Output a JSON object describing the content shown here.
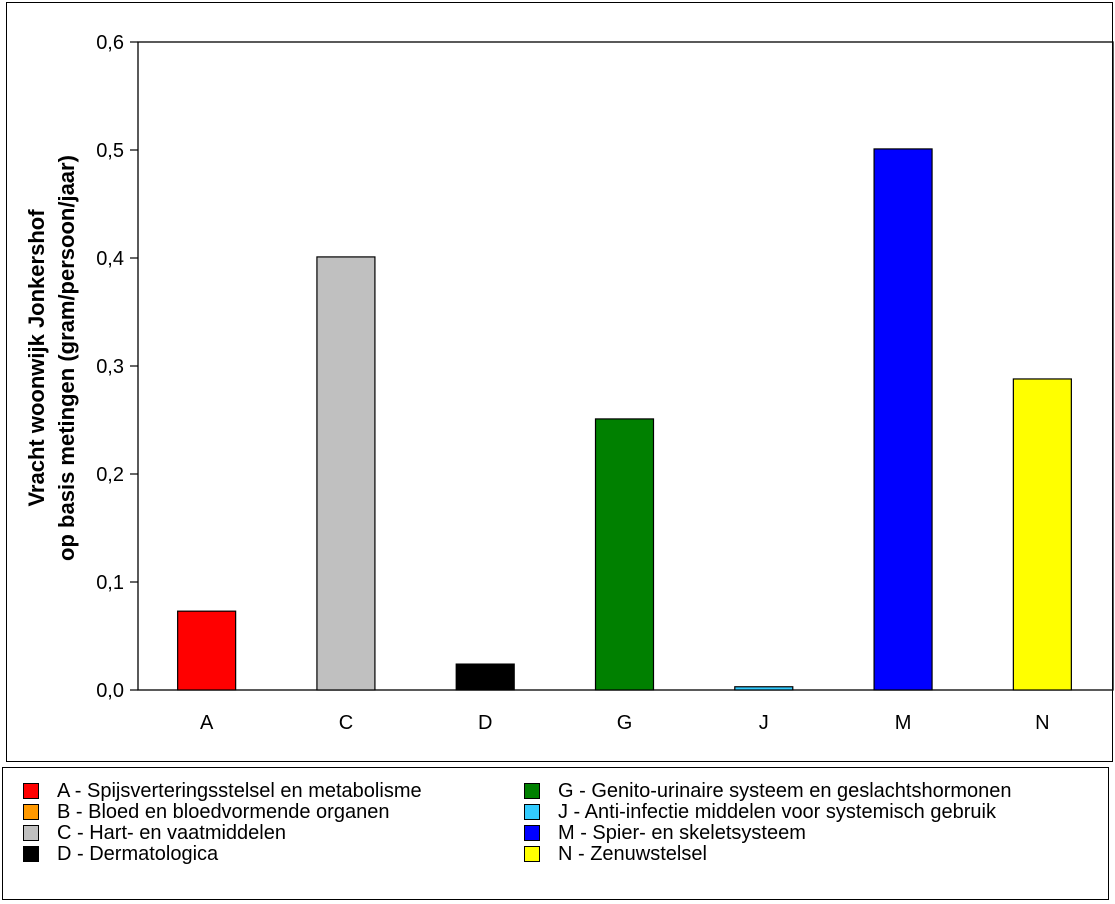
{
  "chart_data": {
    "type": "bar",
    "categories": [
      "A",
      "C",
      "D",
      "G",
      "J",
      "M",
      "N"
    ],
    "values": [
      0.073,
      0.401,
      0.024,
      0.251,
      0.003,
      0.501,
      0.288
    ],
    "colors": [
      "#ff0000",
      "#c0c0c0",
      "#000000",
      "#008000",
      "#33ccff",
      "#0000ff",
      "#ffff00"
    ],
    "ylabel_line1": "Vracht woonwijk Jonkershof",
    "ylabel_line2": "op basis metingen (gram/persoon/jaar)",
    "xlabel": "",
    "ylim": [
      0,
      0.6
    ],
    "yticks": [
      "0,0",
      "0,1",
      "0,2",
      "0,3",
      "0,4",
      "0,5",
      "0,6"
    ],
    "grid": false,
    "legend_position": "bottom"
  },
  "legend": {
    "items": [
      {
        "label": "A - Spijsverteringsstelsel en metabolisme",
        "color": "#ff0000"
      },
      {
        "label": "B - Bloed en bloedvormende organen",
        "color": "#ff9900"
      },
      {
        "label": "C - Hart- en vaatmiddelen",
        "color": "#c0c0c0"
      },
      {
        "label": "D - Dermatologica",
        "color": "#000000"
      },
      {
        "label": "G - Genito-urinaire systeem en geslachtshormonen",
        "color": "#008000"
      },
      {
        "label": "J - Anti-infectie middelen voor systemisch gebruik",
        "color": "#33ccff"
      },
      {
        "label": "M - Spier- en skeletsysteem",
        "color": "#0000ff"
      },
      {
        "label": "N - Zenuwstelsel",
        "color": "#ffff00"
      }
    ]
  }
}
